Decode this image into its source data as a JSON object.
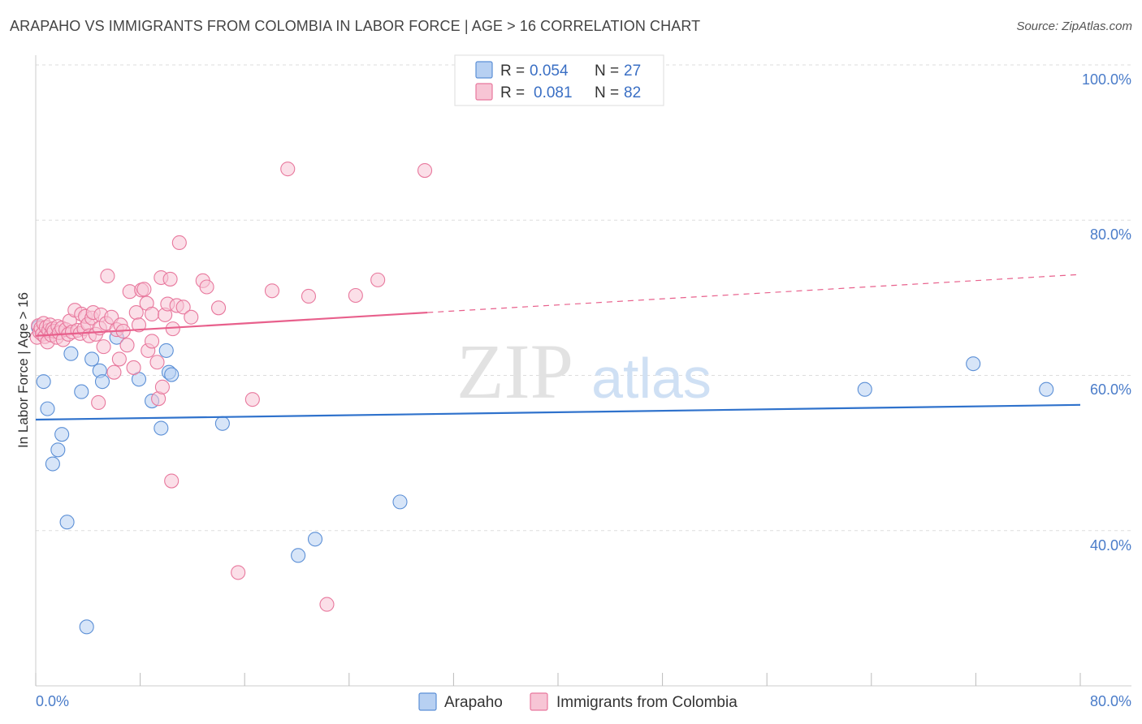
{
  "header": {
    "title": "ARAPAHO VS IMMIGRANTS FROM COLOMBIA IN LABOR FORCE | AGE > 16 CORRELATION CHART",
    "source": "Source: ZipAtlas.com"
  },
  "watermark": {
    "zip": "ZIP",
    "atlas": "atlas"
  },
  "colors": {
    "arapaho_fill": "#b7d0f2",
    "arapaho_stroke": "#5b8fd6",
    "arapaho_line": "#2f72cc",
    "colombia_fill": "#f7c5d5",
    "colombia_stroke": "#e8789d",
    "colombia_line": "#e8608c",
    "grid": "#dddddd",
    "tick_label": "#4a7cc9"
  },
  "chart_data": {
    "type": "scatter",
    "title": "ARAPAHO VS IMMIGRANTS FROM COLOMBIA IN LABOR FORCE | AGE > 16 CORRELATION CHART",
    "xlabel": "",
    "ylabel": "In Labor Force | Age > 16",
    "xlim": [
      0,
      80
    ],
    "ylim": [
      20,
      100
    ],
    "x_tick_labels": {
      "left": "0.0%",
      "right": "80.0%"
    },
    "y_ticks": [
      {
        "value": 100,
        "label": "100.0%"
      },
      {
        "value": 80,
        "label": "80.0%"
      },
      {
        "value": 60,
        "label": "60.0%"
      },
      {
        "value": 40,
        "label": "40.0%"
      }
    ],
    "legend_stats": [
      {
        "r_label": "R = ",
        "r": "0.054",
        "n_label": "N = ",
        "n": "27"
      },
      {
        "r_label": "R = ",
        "r": "0.081",
        "n_label": "N = ",
        "n": "82"
      }
    ],
    "series": [
      {
        "name": "Arapaho",
        "trend": {
          "x": [
            0,
            80
          ],
          "y": [
            54.3,
            56.2
          ]
        },
        "points": [
          [
            0.2,
            66.2
          ],
          [
            0.6,
            59.2
          ],
          [
            0.9,
            55.7
          ],
          [
            1.3,
            48.6
          ],
          [
            1.7,
            50.4
          ],
          [
            2.0,
            52.4
          ],
          [
            2.4,
            41.1
          ],
          [
            2.7,
            62.8
          ],
          [
            3.5,
            57.9
          ],
          [
            3.9,
            27.6
          ],
          [
            4.3,
            62.1
          ],
          [
            4.9,
            60.6
          ],
          [
            5.1,
            59.2
          ],
          [
            6.2,
            64.9
          ],
          [
            7.9,
            59.5
          ],
          [
            8.9,
            56.7
          ],
          [
            9.6,
            53.2
          ],
          [
            10.0,
            63.2
          ],
          [
            10.2,
            60.4
          ],
          [
            10.4,
            60.1
          ],
          [
            14.3,
            53.8
          ],
          [
            20.1,
            36.8
          ],
          [
            21.4,
            38.9
          ],
          [
            27.9,
            43.7
          ],
          [
            63.5,
            58.2
          ],
          [
            71.8,
            61.5
          ],
          [
            77.4,
            58.2
          ]
        ]
      },
      {
        "name": "Immigrants from Colombia",
        "trend": {
          "x": [
            0,
            30
          ],
          "y": [
            65.1,
            68.1
          ]
        },
        "trend_dashed": {
          "x": [
            30,
            80
          ],
          "y": [
            68.1,
            73.0
          ]
        },
        "points": [
          [
            0.1,
            64.9
          ],
          [
            0.2,
            66.4
          ],
          [
            0.3,
            65.6
          ],
          [
            0.4,
            66.1
          ],
          [
            0.5,
            65.3
          ],
          [
            0.6,
            66.7
          ],
          [
            0.7,
            65.0
          ],
          [
            0.8,
            66.2
          ],
          [
            0.9,
            64.3
          ],
          [
            1.0,
            65.8
          ],
          [
            1.1,
            66.5
          ],
          [
            1.2,
            65.2
          ],
          [
            1.3,
            66.0
          ],
          [
            1.4,
            65.7
          ],
          [
            1.6,
            64.9
          ],
          [
            1.7,
            66.3
          ],
          [
            1.8,
            65.5
          ],
          [
            2.0,
            66.1
          ],
          [
            2.1,
            64.6
          ],
          [
            2.3,
            65.9
          ],
          [
            2.5,
            65.3
          ],
          [
            2.6,
            67.0
          ],
          [
            2.8,
            65.6
          ],
          [
            3.0,
            68.4
          ],
          [
            3.2,
            65.8
          ],
          [
            3.4,
            65.4
          ],
          [
            3.5,
            67.9
          ],
          [
            3.7,
            66.0
          ],
          [
            3.8,
            67.6
          ],
          [
            4.0,
            66.6
          ],
          [
            4.1,
            65.1
          ],
          [
            4.3,
            67.4
          ],
          [
            4.4,
            68.1
          ],
          [
            4.6,
            65.3
          ],
          [
            4.8,
            56.5
          ],
          [
            4.9,
            66.1
          ],
          [
            5.0,
            67.8
          ],
          [
            5.2,
            63.7
          ],
          [
            5.4,
            66.7
          ],
          [
            5.5,
            72.8
          ],
          [
            5.8,
            67.5
          ],
          [
            6.0,
            60.4
          ],
          [
            6.2,
            65.9
          ],
          [
            6.4,
            62.1
          ],
          [
            6.5,
            66.5
          ],
          [
            6.7,
            65.7
          ],
          [
            7.0,
            63.9
          ],
          [
            7.2,
            70.8
          ],
          [
            7.5,
            61.0
          ],
          [
            7.7,
            68.1
          ],
          [
            7.9,
            66.5
          ],
          [
            8.1,
            71.0
          ],
          [
            8.3,
            71.1
          ],
          [
            8.5,
            69.3
          ],
          [
            8.6,
            63.2
          ],
          [
            8.9,
            64.4
          ],
          [
            8.9,
            67.9
          ],
          [
            9.3,
            61.7
          ],
          [
            9.4,
            57.0
          ],
          [
            9.6,
            72.6
          ],
          [
            9.7,
            58.5
          ],
          [
            9.9,
            67.8
          ],
          [
            10.1,
            69.2
          ],
          [
            10.3,
            72.4
          ],
          [
            10.4,
            46.4
          ],
          [
            10.5,
            66.0
          ],
          [
            10.8,
            69.0
          ],
          [
            11.0,
            77.1
          ],
          [
            11.3,
            68.8
          ],
          [
            11.9,
            67.5
          ],
          [
            12.8,
            72.2
          ],
          [
            13.1,
            71.4
          ],
          [
            14.0,
            68.7
          ],
          [
            15.5,
            34.6
          ],
          [
            16.6,
            56.9
          ],
          [
            18.1,
            70.9
          ],
          [
            19.3,
            86.6
          ],
          [
            20.9,
            70.2
          ],
          [
            22.3,
            30.5
          ],
          [
            24.5,
            70.3
          ],
          [
            26.2,
            72.3
          ],
          [
            29.8,
            86.4
          ]
        ]
      }
    ],
    "legend": {
      "position": "bottom-center",
      "entries": [
        "Arapaho",
        "Immigrants from Colombia"
      ]
    },
    "grid": true
  }
}
